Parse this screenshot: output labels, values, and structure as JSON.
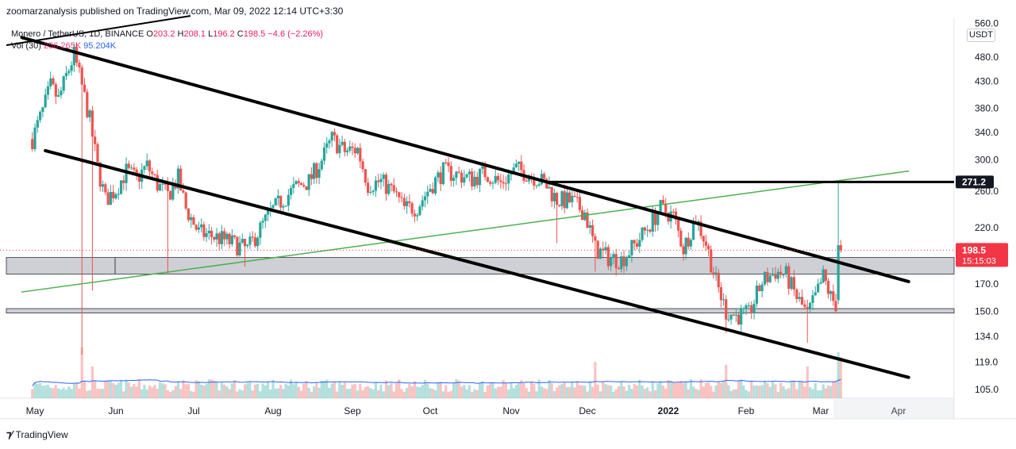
{
  "header": {
    "published": "zoomarzanalysis published on TradingView.com, Mar 09, 2022 12:14 UTC+3:30"
  },
  "legend": {
    "symbol": "Monero / TetherUS, 1D, BINANCE",
    "open_label": "O",
    "open": "203.2",
    "high_label": "H",
    "high": "208.1",
    "low_label": "L",
    "low": "196.2",
    "close_label": "C",
    "close": "198.5",
    "change": "−4.6 (−2.26%)",
    "volume_label": "Vol (30)",
    "volume": "256.265K",
    "volume_ma": "95.204K"
  },
  "currency": "USDT",
  "footer": {
    "brand": "TradingView"
  },
  "colors": {
    "up": "#26a69a",
    "down": "#ef5350",
    "volume_ma": "#2962ff",
    "channel": "#000000",
    "trendline": "#4caf50",
    "zone": "#b2b5be",
    "price_badge": "#f23645"
  },
  "chart_data": {
    "type": "candlestick",
    "symbol": "XMRUSDT",
    "interval": "1D",
    "yscale": "log",
    "ylim": [
      98,
      560
    ],
    "y_ticks": [
      560.0,
      480.0,
      430.0,
      380.0,
      340.0,
      300.0,
      260.0,
      220.0,
      170.0,
      150.0,
      134.0,
      119.0,
      105.0
    ],
    "x_ticks": [
      {
        "label": "May",
        "date": "2021-05-01"
      },
      {
        "label": "Jun",
        "date": "2021-06-01"
      },
      {
        "label": "Jul",
        "date": "2021-07-01"
      },
      {
        "label": "Aug",
        "date": "2021-08-01"
      },
      {
        "label": "Sep",
        "date": "2021-09-01"
      },
      {
        "label": "Oct",
        "date": "2021-10-01"
      },
      {
        "label": "Nov",
        "date": "2021-11-01"
      },
      {
        "label": "Dec",
        "date": "2021-12-01"
      },
      {
        "label": "2022",
        "date": "2022-01-01"
      },
      {
        "label": "Feb",
        "date": "2022-02-01"
      },
      {
        "label": "Mar",
        "date": "2022-03-01"
      },
      {
        "label": "Apr",
        "date": "2022-04-01"
      }
    ],
    "price_path": [
      [
        "2021-04-30",
        330
      ],
      [
        "2021-05-04",
        375
      ],
      [
        "2021-05-07",
        420
      ],
      [
        "2021-05-10",
        395
      ],
      [
        "2021-05-13",
        440
      ],
      [
        "2021-05-16",
        485
      ],
      [
        "2021-05-19",
        420
      ],
      [
        "2021-05-22",
        360
      ],
      [
        "2021-05-25",
        290
      ],
      [
        "2021-05-28",
        250
      ],
      [
        "2021-06-01",
        262
      ],
      [
        "2021-06-05",
        285
      ],
      [
        "2021-06-09",
        275
      ],
      [
        "2021-06-13",
        292
      ],
      [
        "2021-06-17",
        268
      ],
      [
        "2021-06-21",
        255
      ],
      [
        "2021-06-25",
        276
      ],
      [
        "2021-06-28",
        240
      ],
      [
        "2021-07-03",
        215
      ],
      [
        "2021-07-08",
        212
      ],
      [
        "2021-07-13",
        208
      ],
      [
        "2021-07-18",
        203
      ],
      [
        "2021-07-22",
        199
      ],
      [
        "2021-07-26",
        215
      ],
      [
        "2021-07-31",
        236
      ],
      [
        "2021-08-04",
        248
      ],
      [
        "2021-08-10",
        265
      ],
      [
        "2021-08-15",
        272
      ],
      [
        "2021-08-20",
        300
      ],
      [
        "2021-08-24",
        330
      ],
      [
        "2021-08-29",
        312
      ],
      [
        "2021-09-03",
        315
      ],
      [
        "2021-09-07",
        268
      ],
      [
        "2021-09-12",
        272
      ],
      [
        "2021-09-17",
        258
      ],
      [
        "2021-09-21",
        240
      ],
      [
        "2021-09-26",
        242
      ],
      [
        "2021-10-01",
        265
      ],
      [
        "2021-10-06",
        285
      ],
      [
        "2021-10-12",
        280
      ],
      [
        "2021-10-17",
        275
      ],
      [
        "2021-10-22",
        283
      ],
      [
        "2021-10-28",
        270
      ],
      [
        "2021-11-03",
        288
      ],
      [
        "2021-11-09",
        280
      ],
      [
        "2021-11-14",
        270
      ],
      [
        "2021-11-19",
        250
      ],
      [
        "2021-11-25",
        248
      ],
      [
        "2021-11-30",
        236
      ],
      [
        "2021-12-04",
        200
      ],
      [
        "2021-12-09",
        192
      ],
      [
        "2021-12-14",
        190
      ],
      [
        "2021-12-19",
        203
      ],
      [
        "2021-12-24",
        220
      ],
      [
        "2021-12-29",
        240
      ],
      [
        "2022-01-03",
        232
      ],
      [
        "2022-01-07",
        200
      ],
      [
        "2022-01-12",
        230
      ],
      [
        "2022-01-16",
        205
      ],
      [
        "2022-01-20",
        172
      ],
      [
        "2022-01-24",
        150
      ],
      [
        "2022-01-28",
        147
      ],
      [
        "2022-02-02",
        148
      ],
      [
        "2022-02-07",
        172
      ],
      [
        "2022-02-12",
        180
      ],
      [
        "2022-02-16",
        177
      ],
      [
        "2022-02-20",
        160
      ],
      [
        "2022-02-24",
        148
      ],
      [
        "2022-02-27",
        160
      ],
      [
        "2022-03-02",
        176
      ],
      [
        "2022-03-05",
        160
      ],
      [
        "2022-03-07",
        155
      ],
      [
        "2022-03-08",
        203
      ],
      [
        "2022-03-09",
        198.5
      ]
    ],
    "last_candle": {
      "date": "2022-03-09",
      "open": 203.2,
      "high": 208.1,
      "low": 196.2,
      "close": 198.5
    },
    "annotations": {
      "resistance_level": 271.2,
      "current_price": 198.5,
      "countdown": "15:15:03",
      "upper_channel": [
        [
          "2021-04-26",
          525
        ],
        [
          "2022-04-05",
          172
        ]
      ],
      "lower_channel": [
        [
          "2021-05-05",
          313
        ],
        [
          "2022-04-05",
          111
        ]
      ],
      "green_trendline": [
        [
          "2021-04-26",
          164
        ],
        [
          "2022-04-05",
          285
        ]
      ],
      "horizontal_ray_from": "2021-11-16",
      "zones": [
        {
          "from": 178,
          "to": 192
        },
        {
          "from": 149,
          "to": 152
        }
      ]
    },
    "volume": {
      "label": "Vol (30)",
      "last": "256.265K",
      "ma": "95.204K"
    }
  }
}
